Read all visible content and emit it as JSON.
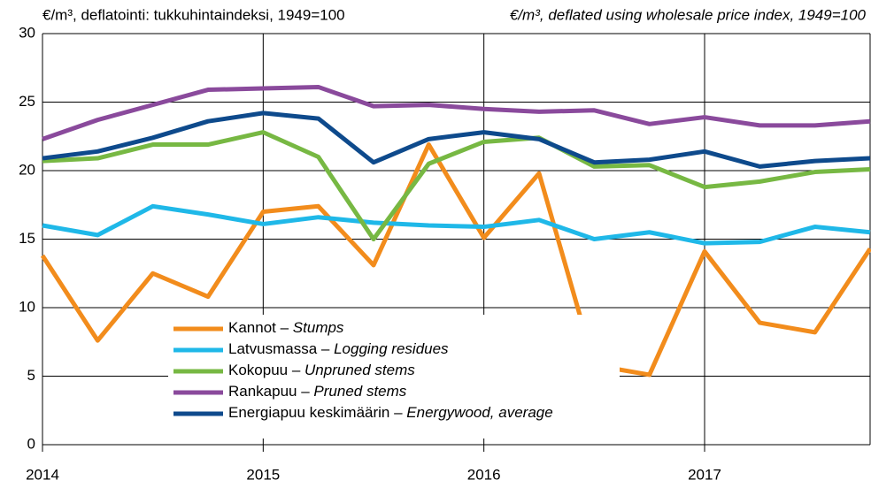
{
  "chart_data": {
    "type": "line",
    "title": "€/m³, deflatointi: tukkuhintaindeksi, 1949=100",
    "subtitle": "€/m³, deflated using wholesale price index, 1949=100",
    "legend_separator": " – ",
    "x": [
      2014,
      2014.25,
      2014.5,
      2014.75,
      2015,
      2015.25,
      2015.5,
      2015.75,
      2016,
      2016.25,
      2016.5,
      2016.75,
      2017,
      2017.25,
      2017.5,
      2017.75
    ],
    "xlim": [
      2014,
      2017.75
    ],
    "xticks": [
      2014,
      2015,
      2016,
      2017
    ],
    "ylim": [
      0,
      30
    ],
    "yticks": [
      0,
      5,
      10,
      15,
      20,
      25,
      30
    ],
    "grid": true,
    "legend": "lower-left",
    "series": [
      {
        "name": "Kannot",
        "name_en": "Stumps",
        "color": "#f28c1c",
        "values": [
          13.8,
          7.6,
          12.5,
          10.8,
          17.0,
          17.4,
          13.1,
          21.9,
          15.1,
          19.8,
          5.8,
          5.1,
          14.1,
          8.9,
          8.2,
          14.3
        ]
      },
      {
        "name": "Latvusmassa",
        "name_en": "Logging residues",
        "color": "#1fb8e8",
        "values": [
          16.0,
          15.3,
          17.4,
          16.8,
          16.1,
          16.6,
          16.2,
          16.0,
          15.9,
          16.4,
          15.0,
          15.5,
          14.7,
          14.8,
          15.9,
          15.5
        ]
      },
      {
        "name": "Kokopuu",
        "name_en": "Unpruned stems",
        "color": "#77b843",
        "values": [
          20.7,
          20.9,
          21.9,
          21.9,
          22.8,
          21.0,
          15.0,
          20.5,
          22.1,
          22.4,
          20.3,
          20.4,
          18.8,
          19.2,
          19.9,
          20.1
        ]
      },
      {
        "name": "Rankapuu",
        "name_en": "Pruned stems",
        "color": "#8a4a9c",
        "values": [
          22.3,
          23.7,
          24.8,
          25.9,
          26.0,
          26.1,
          24.7,
          24.8,
          24.5,
          24.3,
          24.4,
          23.4,
          23.9,
          23.3,
          23.3,
          23.6
        ]
      },
      {
        "name": "Energiapuu keskimäärin",
        "name_en": "Energywood, average",
        "color": "#0e4a8c",
        "values": [
          20.9,
          21.4,
          22.4,
          23.6,
          24.2,
          23.8,
          20.6,
          22.3,
          22.8,
          22.3,
          20.6,
          20.8,
          21.4,
          20.3,
          20.7,
          20.9
        ]
      }
    ]
  }
}
